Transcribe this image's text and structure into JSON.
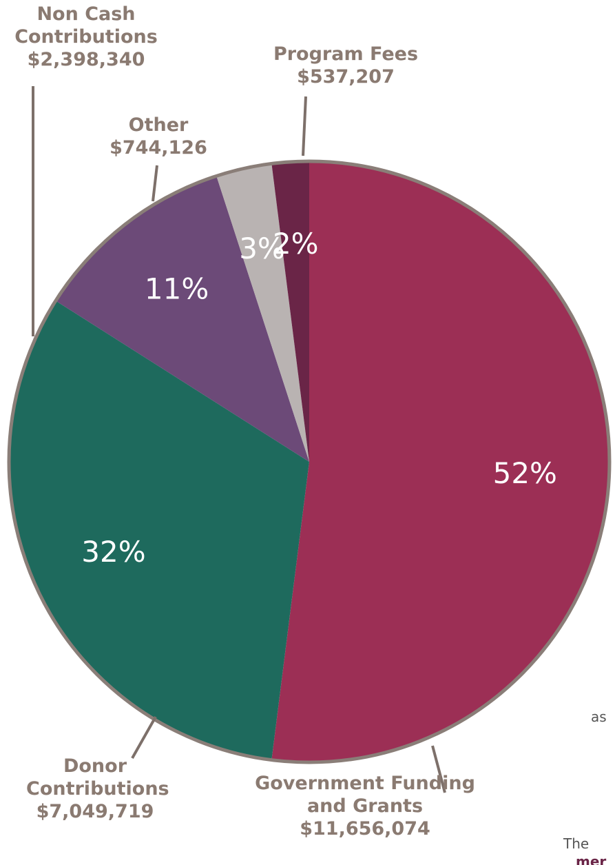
{
  "chart_data": {
    "type": "pie",
    "categories": [
      "Government Funding and Grants",
      "Donor Contributions",
      "Non Cash Contributions",
      "Other",
      "Program Fees"
    ],
    "values": [
      52,
      32,
      11,
      3,
      2
    ],
    "value_labels": [
      "52%",
      "32%",
      "11%",
      "3%",
      "2%"
    ],
    "amounts": [
      11656074,
      7049719,
      2398340,
      744126,
      537207
    ],
    "amount_labels": [
      "$11,656,074",
      "$7,049,719",
      "$2,398,340",
      "$744,126",
      "$537,207"
    ],
    "colors": [
      "#9c2f55",
      "#1e6a5d",
      "#6c4a78",
      "#b9b3b2",
      "#6a2547"
    ]
  },
  "clipped_text": [
    "as",
    "The",
    "mer"
  ]
}
